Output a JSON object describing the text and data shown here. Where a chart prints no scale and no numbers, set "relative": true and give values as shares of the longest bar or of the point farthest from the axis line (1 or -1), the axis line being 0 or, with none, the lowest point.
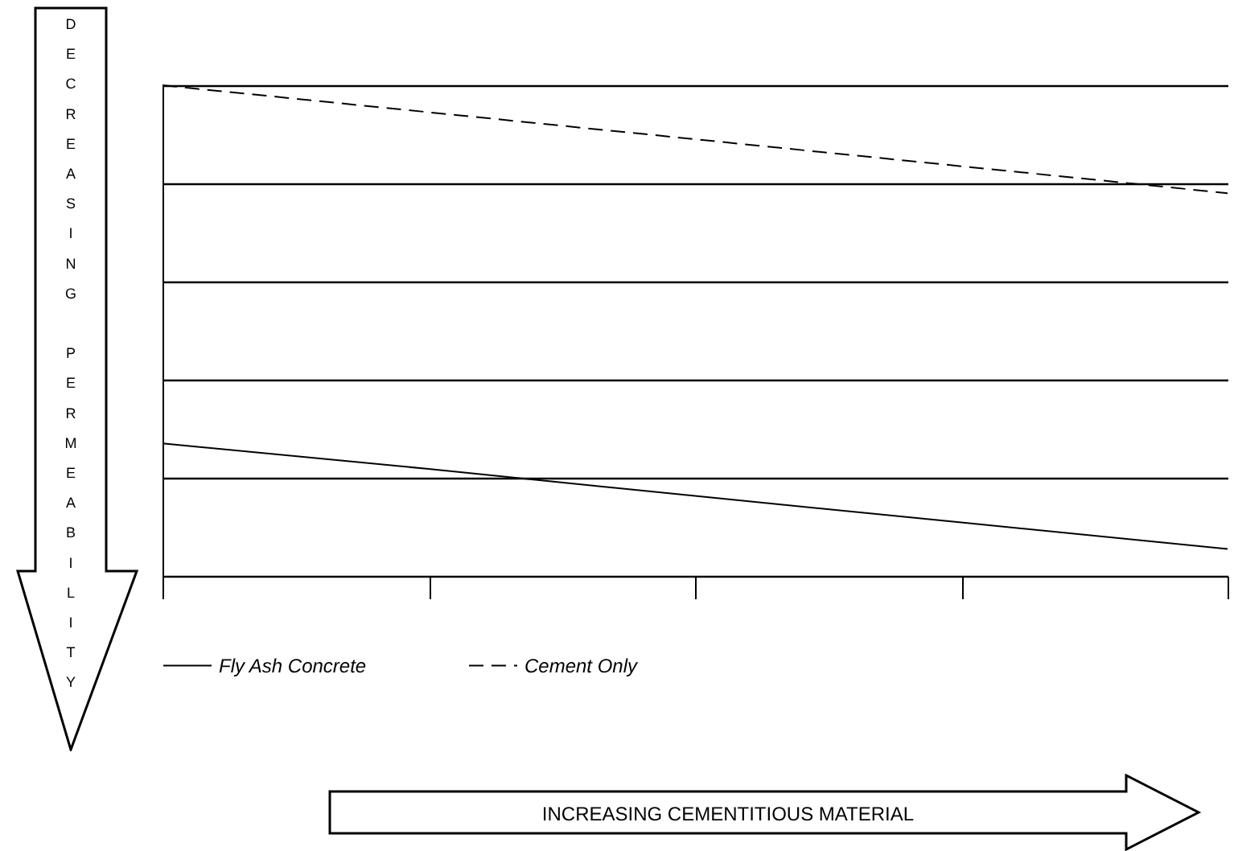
{
  "chart_data": {
    "type": "line",
    "relative": true,
    "annotations": [
      "DECREASING PERMEABILITY",
      "INCREASING CEMENTITIOUS MATERIAL"
    ],
    "categories": [
      null,
      null,
      null,
      null,
      null
    ],
    "grid": "y",
    "legend": "bottom",
    "marker": "none",
    "series": [
      {
        "name": "Fly Ash Concrete",
        "color": "#000000",
        "line_style": "solid",
        "values": [
          0.27,
          0.218,
          0.163,
          0.109,
          0.055
        ]
      },
      {
        "name": "Cement Only",
        "color": "#000000",
        "line_style": "dashed",
        "values": [
          1.0,
          0.945,
          0.89,
          0.835,
          0.78
        ]
      }
    ]
  }
}
